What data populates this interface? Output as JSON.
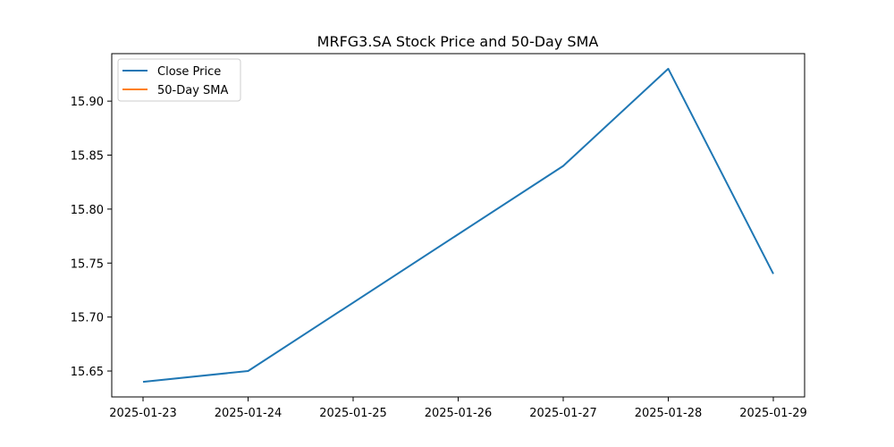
{
  "chart_data": {
    "type": "line",
    "title": "MRFG3.SA Stock Price and 50-Day SMA",
    "xlabel": "",
    "ylabel": "",
    "x": [
      "2025-01-23",
      "2025-01-24",
      "2025-01-25",
      "2025-01-26",
      "2025-01-27",
      "2025-01-28",
      "2025-01-29"
    ],
    "xticks": [
      "2025-01-23",
      "2025-01-24",
      "2025-01-25",
      "2025-01-26",
      "2025-01-27",
      "2025-01-28",
      "2025-01-29"
    ],
    "yticks": [
      "15.65",
      "15.70",
      "15.75",
      "15.80",
      "15.85",
      "15.90"
    ],
    "ylim": [
      15.626,
      15.944
    ],
    "grid": false,
    "legend_position": "top-left",
    "series": [
      {
        "name": "Close Price",
        "color": "#1f77b4",
        "points": [
          {
            "x": "2025-01-23",
            "y": 15.64
          },
          {
            "x": "2025-01-24",
            "y": 15.65
          },
          {
            "x": "2025-01-27",
            "y": 15.84
          },
          {
            "x": "2025-01-28",
            "y": 15.93
          },
          {
            "x": "2025-01-29",
            "y": 15.74
          }
        ]
      },
      {
        "name": "50-Day SMA",
        "color": "#ff7f0e",
        "points": []
      }
    ]
  }
}
